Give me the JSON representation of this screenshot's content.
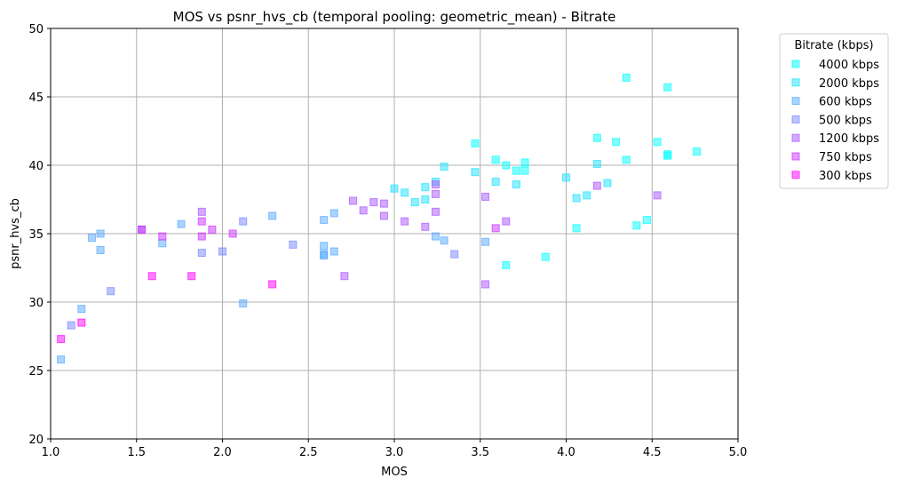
{
  "chart_data": {
    "type": "scatter",
    "title": "MOS vs psnr_hvs_cb (temporal pooling: geometric_mean) - Bitrate",
    "xlabel": "MOS",
    "ylabel": "psnr_hvs_cb",
    "xlim": [
      1.0,
      5.0
    ],
    "ylim": [
      20,
      50
    ],
    "xticks": [
      "1.0",
      "1.5",
      "2.0",
      "2.5",
      "3.0",
      "3.5",
      "4.0",
      "4.5",
      "5.0"
    ],
    "yticks": [
      "20",
      "25",
      "30",
      "35",
      "40",
      "45",
      "50"
    ],
    "grid": true,
    "legend_title": "Bitrate (kbps)",
    "legend_position": "outside-top-right",
    "marker": "square",
    "series": [
      {
        "name": "4000 kbps",
        "color": "#00ffff",
        "points": [
          [
            3.47,
            41.6
          ],
          [
            3.59,
            40.4
          ],
          [
            3.65,
            40.0
          ],
          [
            3.71,
            39.6
          ],
          [
            3.76,
            39.6
          ],
          [
            3.76,
            40.2
          ],
          [
            4.18,
            42.0
          ],
          [
            4.29,
            41.7
          ],
          [
            4.35,
            46.4
          ],
          [
            4.35,
            40.4
          ],
          [
            4.53,
            41.7
          ],
          [
            4.59,
            45.7
          ],
          [
            4.59,
            40.7
          ],
          [
            4.59,
            40.8
          ],
          [
            4.76,
            41.0
          ],
          [
            4.47,
            36.0
          ],
          [
            4.41,
            35.6
          ],
          [
            4.06,
            35.4
          ],
          [
            3.88,
            33.3
          ],
          [
            3.65,
            32.7
          ]
        ]
      },
      {
        "name": "2000 kbps",
        "color": "#1ee1ff",
        "points": [
          [
            3.0,
            38.3
          ],
          [
            3.06,
            38.0
          ],
          [
            3.12,
            37.3
          ],
          [
            3.18,
            38.4
          ],
          [
            3.18,
            37.5
          ],
          [
            3.24,
            38.8
          ],
          [
            3.29,
            39.9
          ],
          [
            3.47,
            39.5
          ],
          [
            3.59,
            38.8
          ],
          [
            3.71,
            38.6
          ],
          [
            4.0,
            39.1
          ],
          [
            4.06,
            37.6
          ],
          [
            4.12,
            37.8
          ],
          [
            4.18,
            40.1
          ],
          [
            4.24,
            38.7
          ]
        ]
      },
      {
        "name": "600 kbps",
        "color": "#55aaff",
        "points": [
          [
            1.06,
            25.8
          ],
          [
            1.18,
            29.5
          ],
          [
            1.24,
            34.7
          ],
          [
            1.29,
            35.0
          ],
          [
            1.29,
            33.8
          ],
          [
            1.65,
            34.3
          ],
          [
            1.76,
            35.7
          ],
          [
            2.12,
            29.9
          ],
          [
            2.29,
            36.3
          ],
          [
            2.59,
            36.0
          ],
          [
            2.59,
            34.1
          ],
          [
            2.59,
            33.4
          ],
          [
            2.59,
            33.5
          ],
          [
            2.65,
            36.5
          ],
          [
            2.65,
            33.7
          ],
          [
            3.24,
            34.8
          ],
          [
            3.29,
            34.5
          ],
          [
            3.53,
            34.4
          ]
        ]
      },
      {
        "name": "500 kbps",
        "color": "#7788ff",
        "points": [
          [
            1.12,
            28.3
          ],
          [
            1.35,
            30.8
          ],
          [
            1.88,
            33.6
          ],
          [
            2.0,
            33.7
          ],
          [
            2.12,
            35.9
          ],
          [
            2.41,
            34.2
          ],
          [
            3.35,
            33.5
          ]
        ]
      },
      {
        "name": "1200 kbps",
        "color": "#aa55ff",
        "points": [
          [
            1.53,
            35.3
          ],
          [
            1.88,
            36.6
          ],
          [
            2.71,
            31.9
          ],
          [
            2.76,
            37.4
          ],
          [
            2.82,
            36.7
          ],
          [
            2.88,
            37.3
          ],
          [
            2.94,
            37.2
          ],
          [
            2.94,
            36.3
          ],
          [
            3.06,
            35.9
          ],
          [
            3.18,
            35.5
          ],
          [
            3.24,
            38.6
          ],
          [
            3.24,
            37.9
          ],
          [
            3.24,
            36.6
          ],
          [
            3.53,
            37.7
          ],
          [
            3.53,
            31.3
          ],
          [
            3.65,
            35.9
          ],
          [
            4.18,
            38.5
          ],
          [
            4.53,
            37.8
          ]
        ]
      },
      {
        "name": "750 kbps",
        "color": "#cc33ff",
        "points": [
          [
            1.53,
            35.3
          ],
          [
            1.65,
            34.8
          ],
          [
            1.88,
            35.9
          ],
          [
            1.88,
            34.8
          ],
          [
            1.94,
            35.3
          ],
          [
            2.06,
            35.0
          ],
          [
            3.59,
            35.4
          ]
        ]
      },
      {
        "name": "300 kbps",
        "color": "#ff00ff",
        "points": [
          [
            1.06,
            27.3
          ],
          [
            1.18,
            28.5
          ],
          [
            1.59,
            31.9
          ],
          [
            1.82,
            31.9
          ],
          [
            2.29,
            31.3
          ]
        ]
      }
    ]
  }
}
